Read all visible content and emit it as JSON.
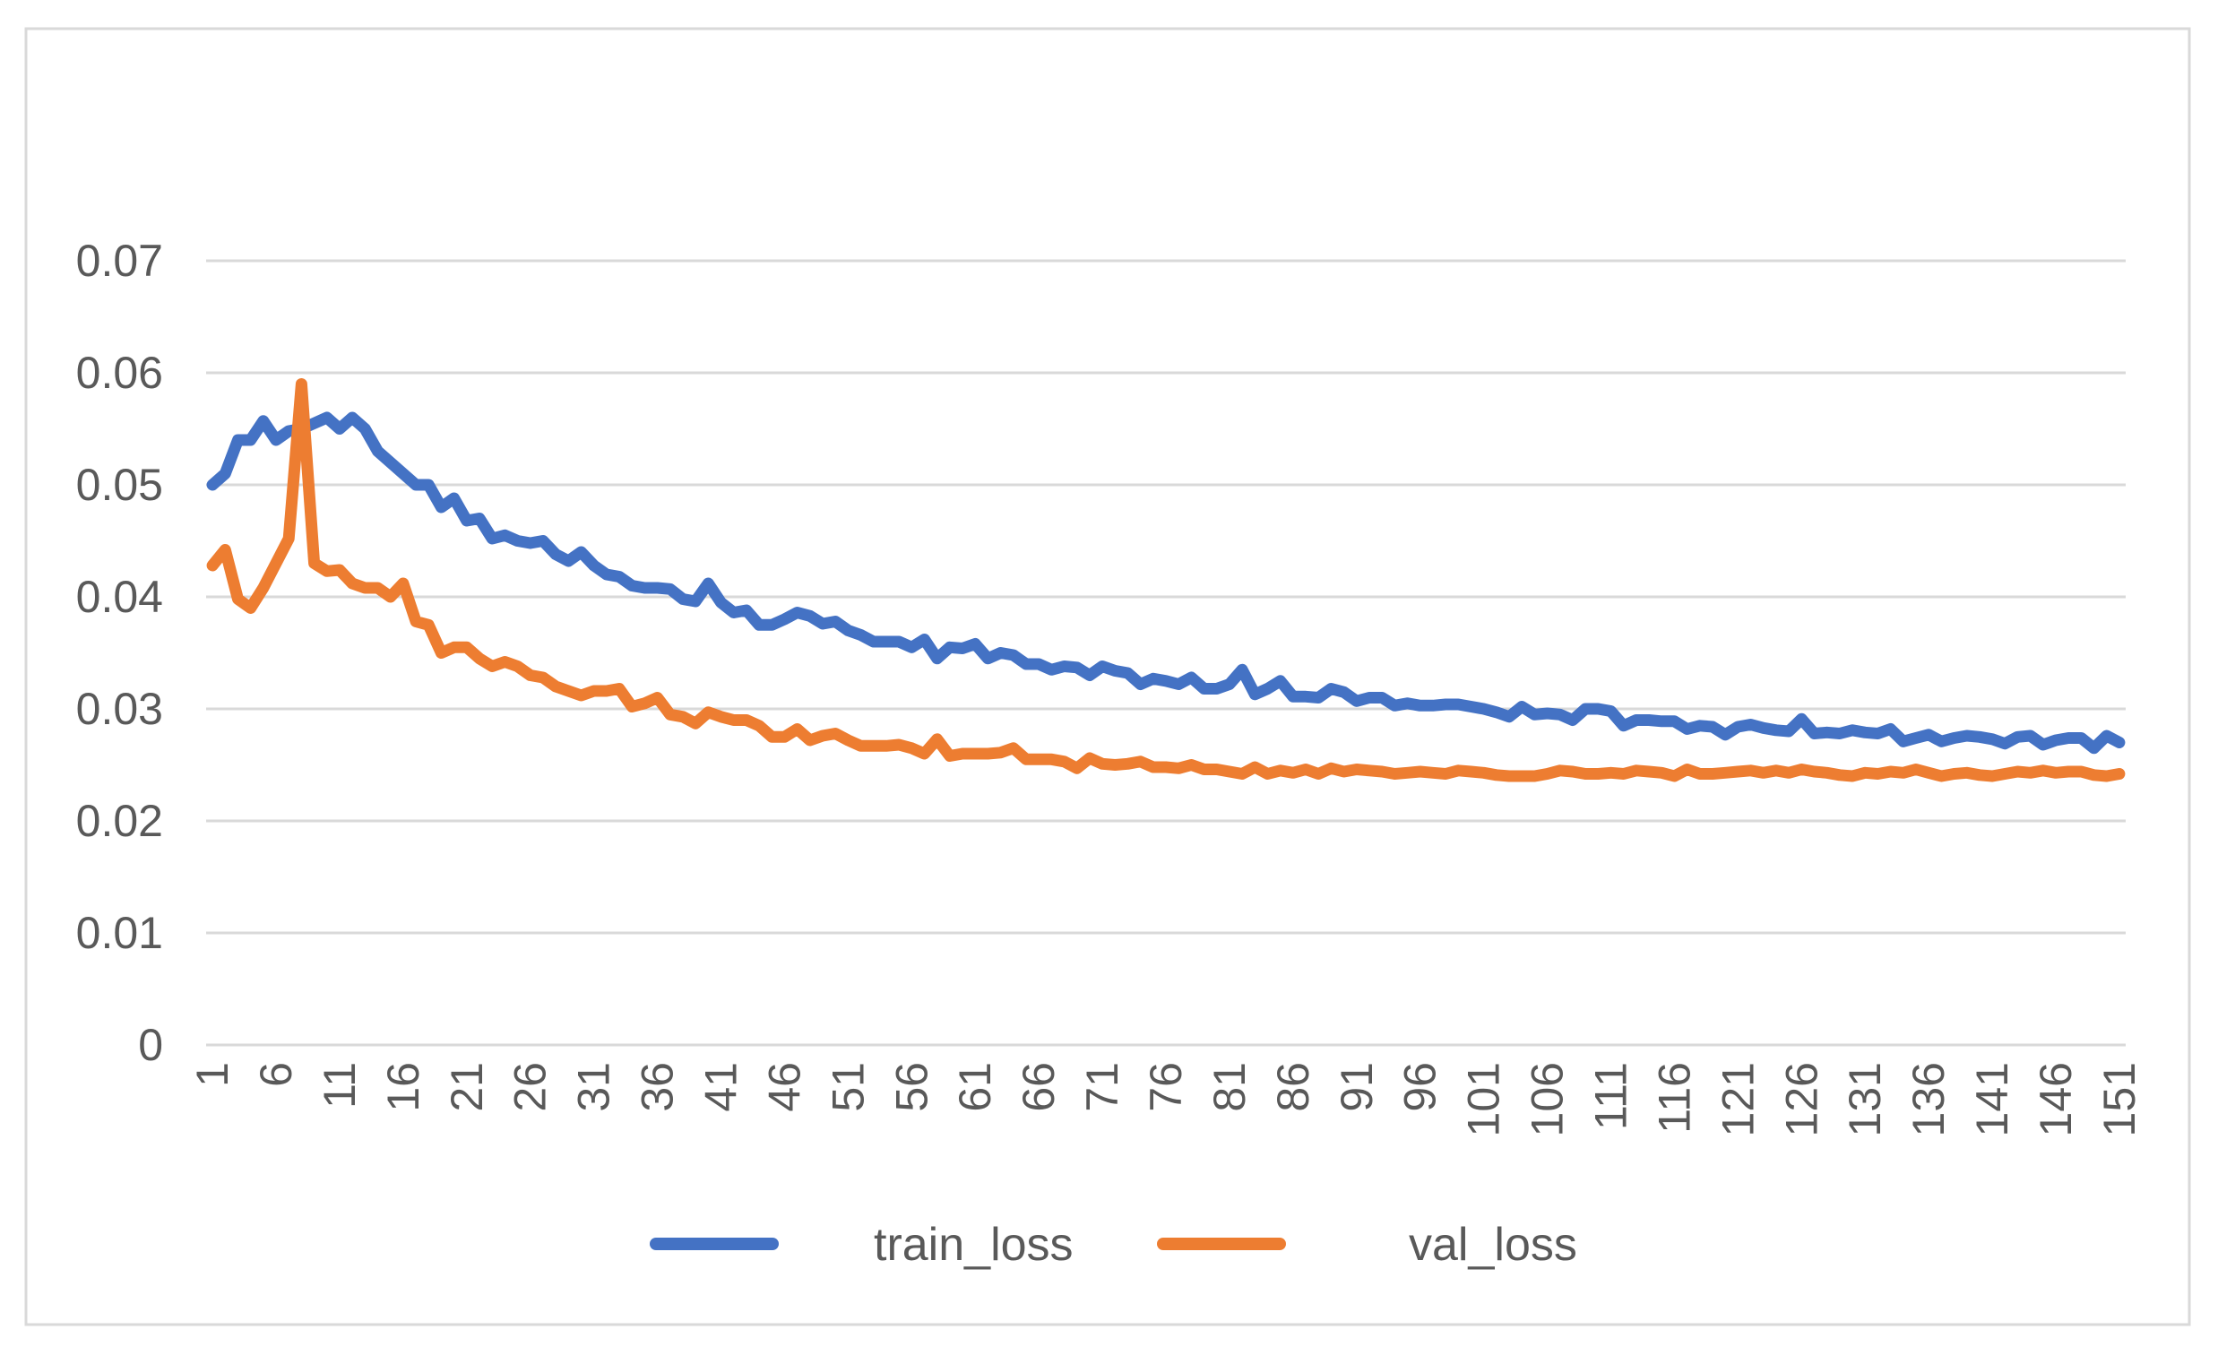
{
  "chart_data": {
    "type": "line",
    "title": "",
    "xlabel": "",
    "ylabel": "",
    "ylim": [
      0,
      0.07
    ],
    "yticks": [
      "0",
      "0.01",
      "0.02",
      "0.03",
      "0.04",
      "0.05",
      "0.06",
      "0.07"
    ],
    "ytick_values": [
      0,
      0.01,
      0.02,
      0.03,
      0.04,
      0.05,
      0.06,
      0.07
    ],
    "x_start": 1,
    "x_end": 151,
    "x_tick_step": 5,
    "grid": true,
    "legend_placement": "bottom",
    "colors": {
      "train_loss": "#4472C4",
      "val_loss": "#ED7D31",
      "grid": "#D9D9D9",
      "text": "#595959",
      "frame": "#D9D9D9"
    },
    "series": [
      {
        "name": "train_loss",
        "values": [
          0.05,
          0.051,
          0.054,
          0.054,
          0.0557,
          0.054,
          0.0548,
          0.055,
          0.0555,
          0.056,
          0.055,
          0.056,
          0.055,
          0.053,
          0.052,
          0.051,
          0.05,
          0.05,
          0.048,
          0.0488,
          0.0468,
          0.047,
          0.0452,
          0.0455,
          0.045,
          0.0448,
          0.045,
          0.0438,
          0.0432,
          0.044,
          0.0428,
          0.042,
          0.0418,
          0.041,
          0.0408,
          0.0408,
          0.0407,
          0.0398,
          0.0396,
          0.0412,
          0.0395,
          0.0386,
          0.0388,
          0.0375,
          0.0375,
          0.038,
          0.0386,
          0.0383,
          0.0376,
          0.0378,
          0.037,
          0.0366,
          0.036,
          0.036,
          0.036,
          0.0355,
          0.0362,
          0.0345,
          0.0355,
          0.0354,
          0.0358,
          0.0345,
          0.035,
          0.0348,
          0.034,
          0.034,
          0.0335,
          0.0338,
          0.0337,
          0.033,
          0.0338,
          0.0334,
          0.0332,
          0.0322,
          0.0327,
          0.0325,
          0.0322,
          0.0328,
          0.0318,
          0.0318,
          0.0322,
          0.0335,
          0.0313,
          0.0318,
          0.0325,
          0.0311,
          0.0311,
          0.031,
          0.0318,
          0.0315,
          0.0307,
          0.031,
          0.031,
          0.0303,
          0.0305,
          0.0303,
          0.0303,
          0.0304,
          0.0304,
          0.0302,
          0.03,
          0.0297,
          0.0293,
          0.0302,
          0.0295,
          0.0296,
          0.0295,
          0.029,
          0.03,
          0.03,
          0.0298,
          0.0285,
          0.029,
          0.029,
          0.0289,
          0.0289,
          0.0282,
          0.0285,
          0.0284,
          0.0277,
          0.0284,
          0.0286,
          0.0283,
          0.0281,
          0.028,
          0.0291,
          0.0278,
          0.0279,
          0.0278,
          0.0281,
          0.0279,
          0.0278,
          0.0282,
          0.0271,
          0.0274,
          0.0277,
          0.0271,
          0.0274,
          0.0276,
          0.0275,
          0.0273,
          0.0269,
          0.0275,
          0.0276,
          0.0268,
          0.0272,
          0.0274,
          0.0274,
          0.0265,
          0.0276,
          0.027
        ]
      },
      {
        "name": "val_loss",
        "values": [
          0.0428,
          0.0442,
          0.0398,
          0.039,
          0.0408,
          0.043,
          0.0452,
          0.059,
          0.043,
          0.0423,
          0.0424,
          0.0412,
          0.0408,
          0.0408,
          0.04,
          0.0412,
          0.0378,
          0.0375,
          0.035,
          0.0355,
          0.0355,
          0.0345,
          0.0338,
          0.0342,
          0.0338,
          0.033,
          0.0328,
          0.032,
          0.0316,
          0.0312,
          0.0316,
          0.0316,
          0.0318,
          0.0302,
          0.0305,
          0.031,
          0.0295,
          0.0293,
          0.0287,
          0.0297,
          0.0293,
          0.029,
          0.029,
          0.0285,
          0.0275,
          0.0275,
          0.0282,
          0.0272,
          0.0276,
          0.0278,
          0.0272,
          0.0267,
          0.0267,
          0.0267,
          0.0268,
          0.0265,
          0.026,
          0.0273,
          0.0258,
          0.026,
          0.026,
          0.026,
          0.0261,
          0.0265,
          0.0255,
          0.0255,
          0.0255,
          0.0253,
          0.0247,
          0.0256,
          0.0251,
          0.025,
          0.0251,
          0.0253,
          0.0248,
          0.0248,
          0.0247,
          0.025,
          0.0246,
          0.0246,
          0.0244,
          0.0242,
          0.0248,
          0.0242,
          0.0245,
          0.0243,
          0.0246,
          0.0242,
          0.0247,
          0.0244,
          0.0246,
          0.0245,
          0.0244,
          0.0242,
          0.0243,
          0.0244,
          0.0243,
          0.0242,
          0.0245,
          0.0244,
          0.0243,
          0.0241,
          0.024,
          0.024,
          0.024,
          0.0242,
          0.0245,
          0.0244,
          0.0242,
          0.0242,
          0.0243,
          0.0242,
          0.0245,
          0.0244,
          0.0243,
          0.024,
          0.0246,
          0.0242,
          0.0242,
          0.0243,
          0.0244,
          0.0245,
          0.0243,
          0.0245,
          0.0243,
          0.0246,
          0.0244,
          0.0243,
          0.0241,
          0.024,
          0.0243,
          0.0242,
          0.0244,
          0.0243,
          0.0246,
          0.0243,
          0.024,
          0.0242,
          0.0243,
          0.0241,
          0.024,
          0.0242,
          0.0244,
          0.0243,
          0.0245,
          0.0243,
          0.0244,
          0.0244,
          0.0241,
          0.024,
          0.0242
        ]
      }
    ]
  }
}
